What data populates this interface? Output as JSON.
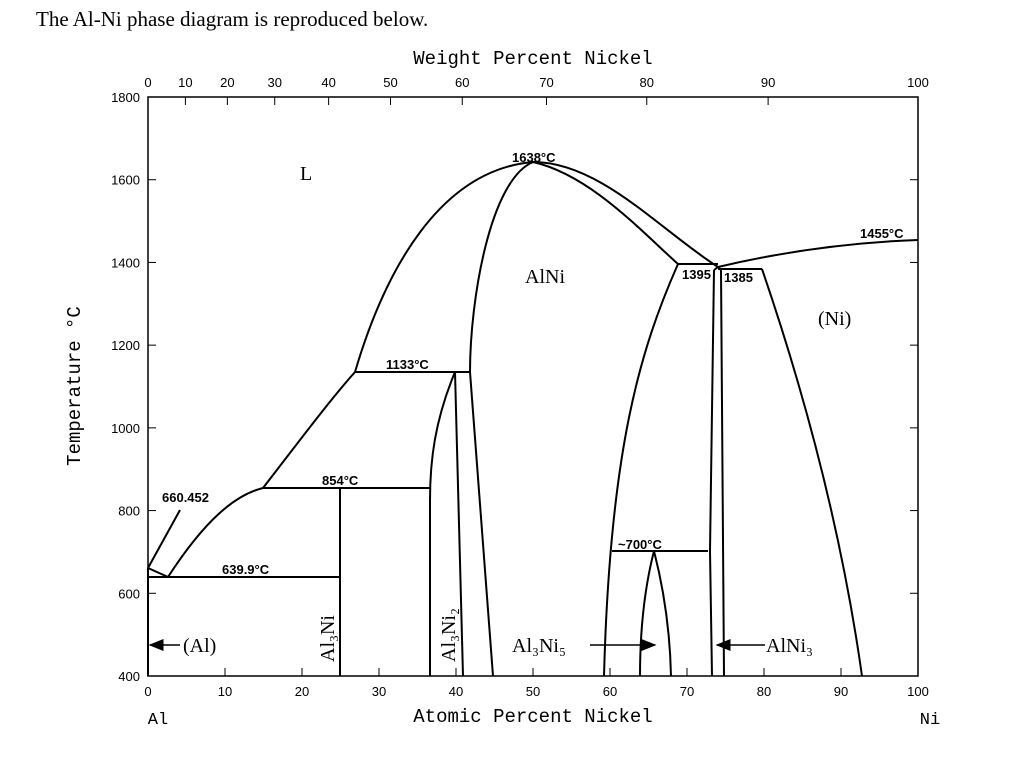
{
  "intro": "The Al-Ni phase diagram is reproduced below.",
  "axes": {
    "top": {
      "title": "Weight Percent Nickel",
      "ticks": [
        0,
        10,
        20,
        30,
        40,
        50,
        60,
        70,
        80,
        90,
        100
      ]
    },
    "bottom": {
      "title": "Atomic Percent Nickel",
      "ticks": [
        0,
        10,
        20,
        30,
        40,
        50,
        60,
        70,
        80,
        90,
        100
      ],
      "left_end": "Al",
      "right_end": "Ni"
    },
    "left": {
      "title": "Temperature °C",
      "ticks": [
        400,
        600,
        800,
        1000,
        1200,
        1400,
        1600,
        1800
      ]
    }
  },
  "labels": [
    "L",
    "1638°C",
    "1455°C",
    "AlNi",
    "1395",
    "1385",
    "(Ni)",
    "1133°C",
    "854°C",
    "660.452",
    "639.9°C",
    "~700°C",
    "(Al)",
    "Al₃Ni",
    "Al₃Ni₂",
    "Al₃Ni₅",
    "AlNi₃"
  ]
}
